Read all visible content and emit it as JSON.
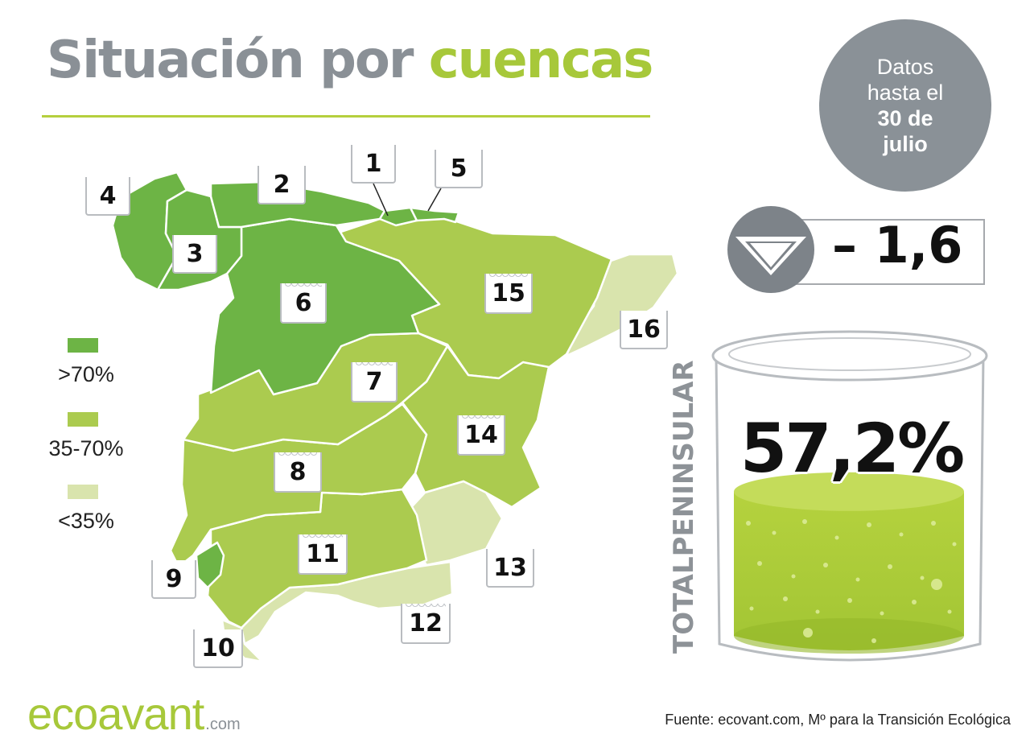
{
  "title": {
    "part1": "Situación por",
    "part2": "cuencas"
  },
  "date_note": {
    "line1": "Datos",
    "line2": "hasta el",
    "line3": "30 de",
    "line4": "julio"
  },
  "legend": [
    {
      "label": ">70%",
      "color": "#6db445"
    },
    {
      "label": "35-70%",
      "color": "#abcb4f"
    },
    {
      "label": "<35%",
      "color": "#d9e4ad"
    }
  ],
  "basins": [
    {
      "number": "1",
      "category": ">70%"
    },
    {
      "number": "2",
      "category": ">70%"
    },
    {
      "number": "3",
      "category": ">70%"
    },
    {
      "number": "4",
      "category": ">70%"
    },
    {
      "number": "5",
      "category": ">70%"
    },
    {
      "number": "6",
      "category": ">70%"
    },
    {
      "number": "7",
      "category": "35-70%"
    },
    {
      "number": "8",
      "category": "35-70%"
    },
    {
      "number": "9",
      "category": ">70%"
    },
    {
      "number": "10",
      "category": "<35%"
    },
    {
      "number": "11",
      "category": "35-70%"
    },
    {
      "number": "12",
      "category": "<35%"
    },
    {
      "number": "13",
      "category": "<35%"
    },
    {
      "number": "14",
      "category": "35-70%"
    },
    {
      "number": "15",
      "category": "35-70%"
    },
    {
      "number": "16",
      "category": "<35%"
    }
  ],
  "total": {
    "label": "TOTALPENINSULAR",
    "percentage": "57,2%",
    "fill_fraction": 0.572,
    "variation": "– 1,6",
    "trend": "down"
  },
  "logo": {
    "name": "ecoavant",
    "suffix": ".com"
  },
  "source": "Fuente: ecovant.com, Mº para la Transición Ecológica",
  "colors": {
    "title_gray": "#8a9096",
    "accent_green": "#a7c83a",
    "dark_green": "#6db445",
    "mid_green": "#abcb4f",
    "light_green": "#d9e4ad"
  }
}
